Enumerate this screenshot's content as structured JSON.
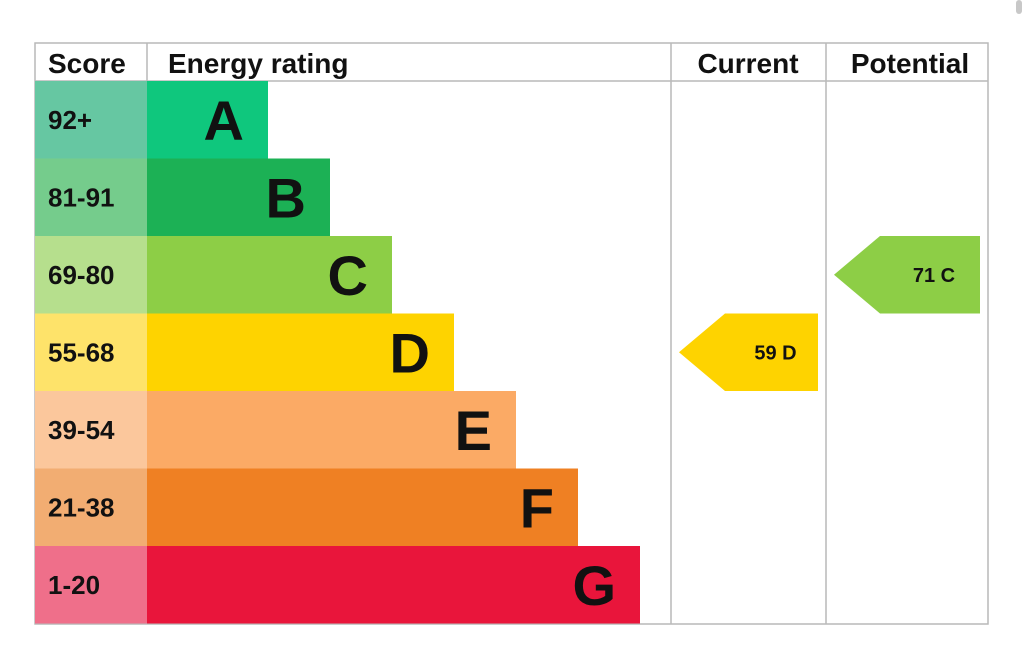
{
  "header": {
    "score": "Score",
    "energy_rating": "Energy rating",
    "current": "Current",
    "potential": "Potential"
  },
  "chart_data": {
    "type": "bar",
    "bands": [
      {
        "score": "92+",
        "letter": "A",
        "color": "#0fc77d",
        "score_bg": "#66c7a2"
      },
      {
        "score": "81-91",
        "letter": "B",
        "color": "#1cb155",
        "score_bg": "#75cc8c"
      },
      {
        "score": "69-80",
        "letter": "C",
        "color": "#8dce46",
        "score_bg": "#b6df8d"
      },
      {
        "score": "55-68",
        "letter": "D",
        "color": "#fed300",
        "score_bg": "#fee36a"
      },
      {
        "score": "39-54",
        "letter": "E",
        "color": "#fbaa65",
        "score_bg": "#fbc79c"
      },
      {
        "score": "21-38",
        "letter": "F",
        "color": "#ef8023",
        "score_bg": "#f2ad72"
      },
      {
        "score": "1-20",
        "letter": "G",
        "color": "#e9153b",
        "score_bg": "#ef6f8a"
      }
    ],
    "current": {
      "value": 59,
      "band": "D",
      "label": "59  D",
      "color": "#fed300"
    },
    "potential": {
      "value": 71,
      "band": "C",
      "label": "71  C",
      "color": "#8dce46"
    }
  }
}
